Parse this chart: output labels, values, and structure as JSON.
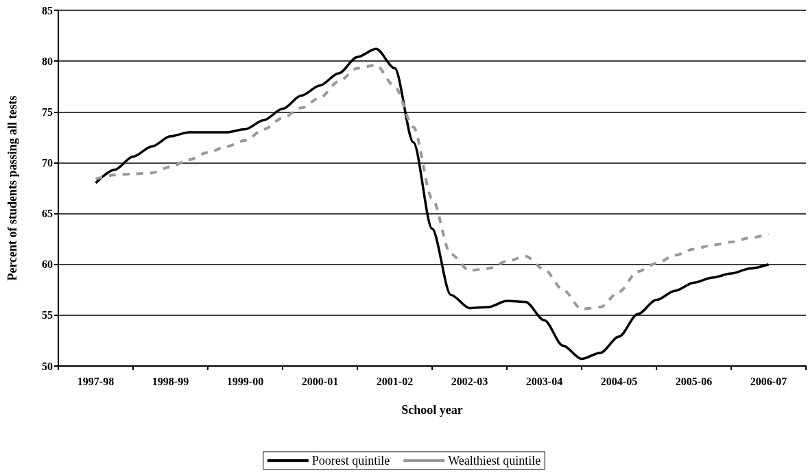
{
  "chart_data": {
    "type": "line",
    "xlabel": "School year",
    "ylabel": "Percent of students passing all tests",
    "categories": [
      null,
      null,
      "1997-98",
      null,
      null,
      null,
      "1998-99",
      null,
      null,
      null,
      "1999-00",
      null,
      null,
      null,
      "2000-01",
      null,
      null,
      null,
      "2001-02",
      null,
      null,
      null,
      "2002-03",
      null,
      null,
      null,
      "2003-04",
      null,
      null,
      null,
      "2004-05",
      null,
      null,
      null,
      "2005-06",
      null,
      null,
      null,
      "2006-07",
      null,
      null
    ],
    "ylim": [
      50,
      85
    ],
    "yticks": [
      50,
      55,
      60,
      65,
      70,
      75,
      80,
      85
    ],
    "grid": "y",
    "legend": "bottom",
    "marker": "none",
    "series": [
      {
        "name": "Poorest quintile",
        "color": "#000000",
        "line_style": "solid",
        "values": [
          null,
          null,
          68.0,
          69.3,
          70.6,
          71.6,
          72.6,
          73.0,
          73.0,
          73.0,
          73.3,
          74.2,
          75.3,
          76.6,
          77.6,
          78.8,
          80.4,
          81.2,
          79.3,
          72.0,
          63.5,
          57.0,
          55.7,
          55.8,
          56.4,
          56.3,
          54.5,
          52.0,
          50.7,
          51.3,
          52.9,
          55.1,
          56.5,
          57.4,
          58.2,
          58.7,
          59.1,
          59.6,
          60.0,
          null,
          null
        ]
      },
      {
        "name": "Wealthiest quintile",
        "color": "#999999",
        "line_style": "dashed",
        "values": [
          null,
          null,
          68.4,
          68.8,
          68.9,
          69.0,
          69.6,
          70.3,
          71.0,
          71.6,
          72.2,
          73.3,
          74.4,
          75.4,
          76.4,
          78.0,
          79.3,
          79.6,
          77.5,
          73.5,
          66.5,
          61.0,
          59.4,
          59.6,
          60.3,
          60.8,
          59.5,
          57.5,
          55.6,
          55.8,
          57.3,
          59.3,
          60.1,
          60.9,
          61.5,
          61.9,
          62.2,
          62.6,
          63.0,
          null,
          null
        ]
      }
    ]
  }
}
